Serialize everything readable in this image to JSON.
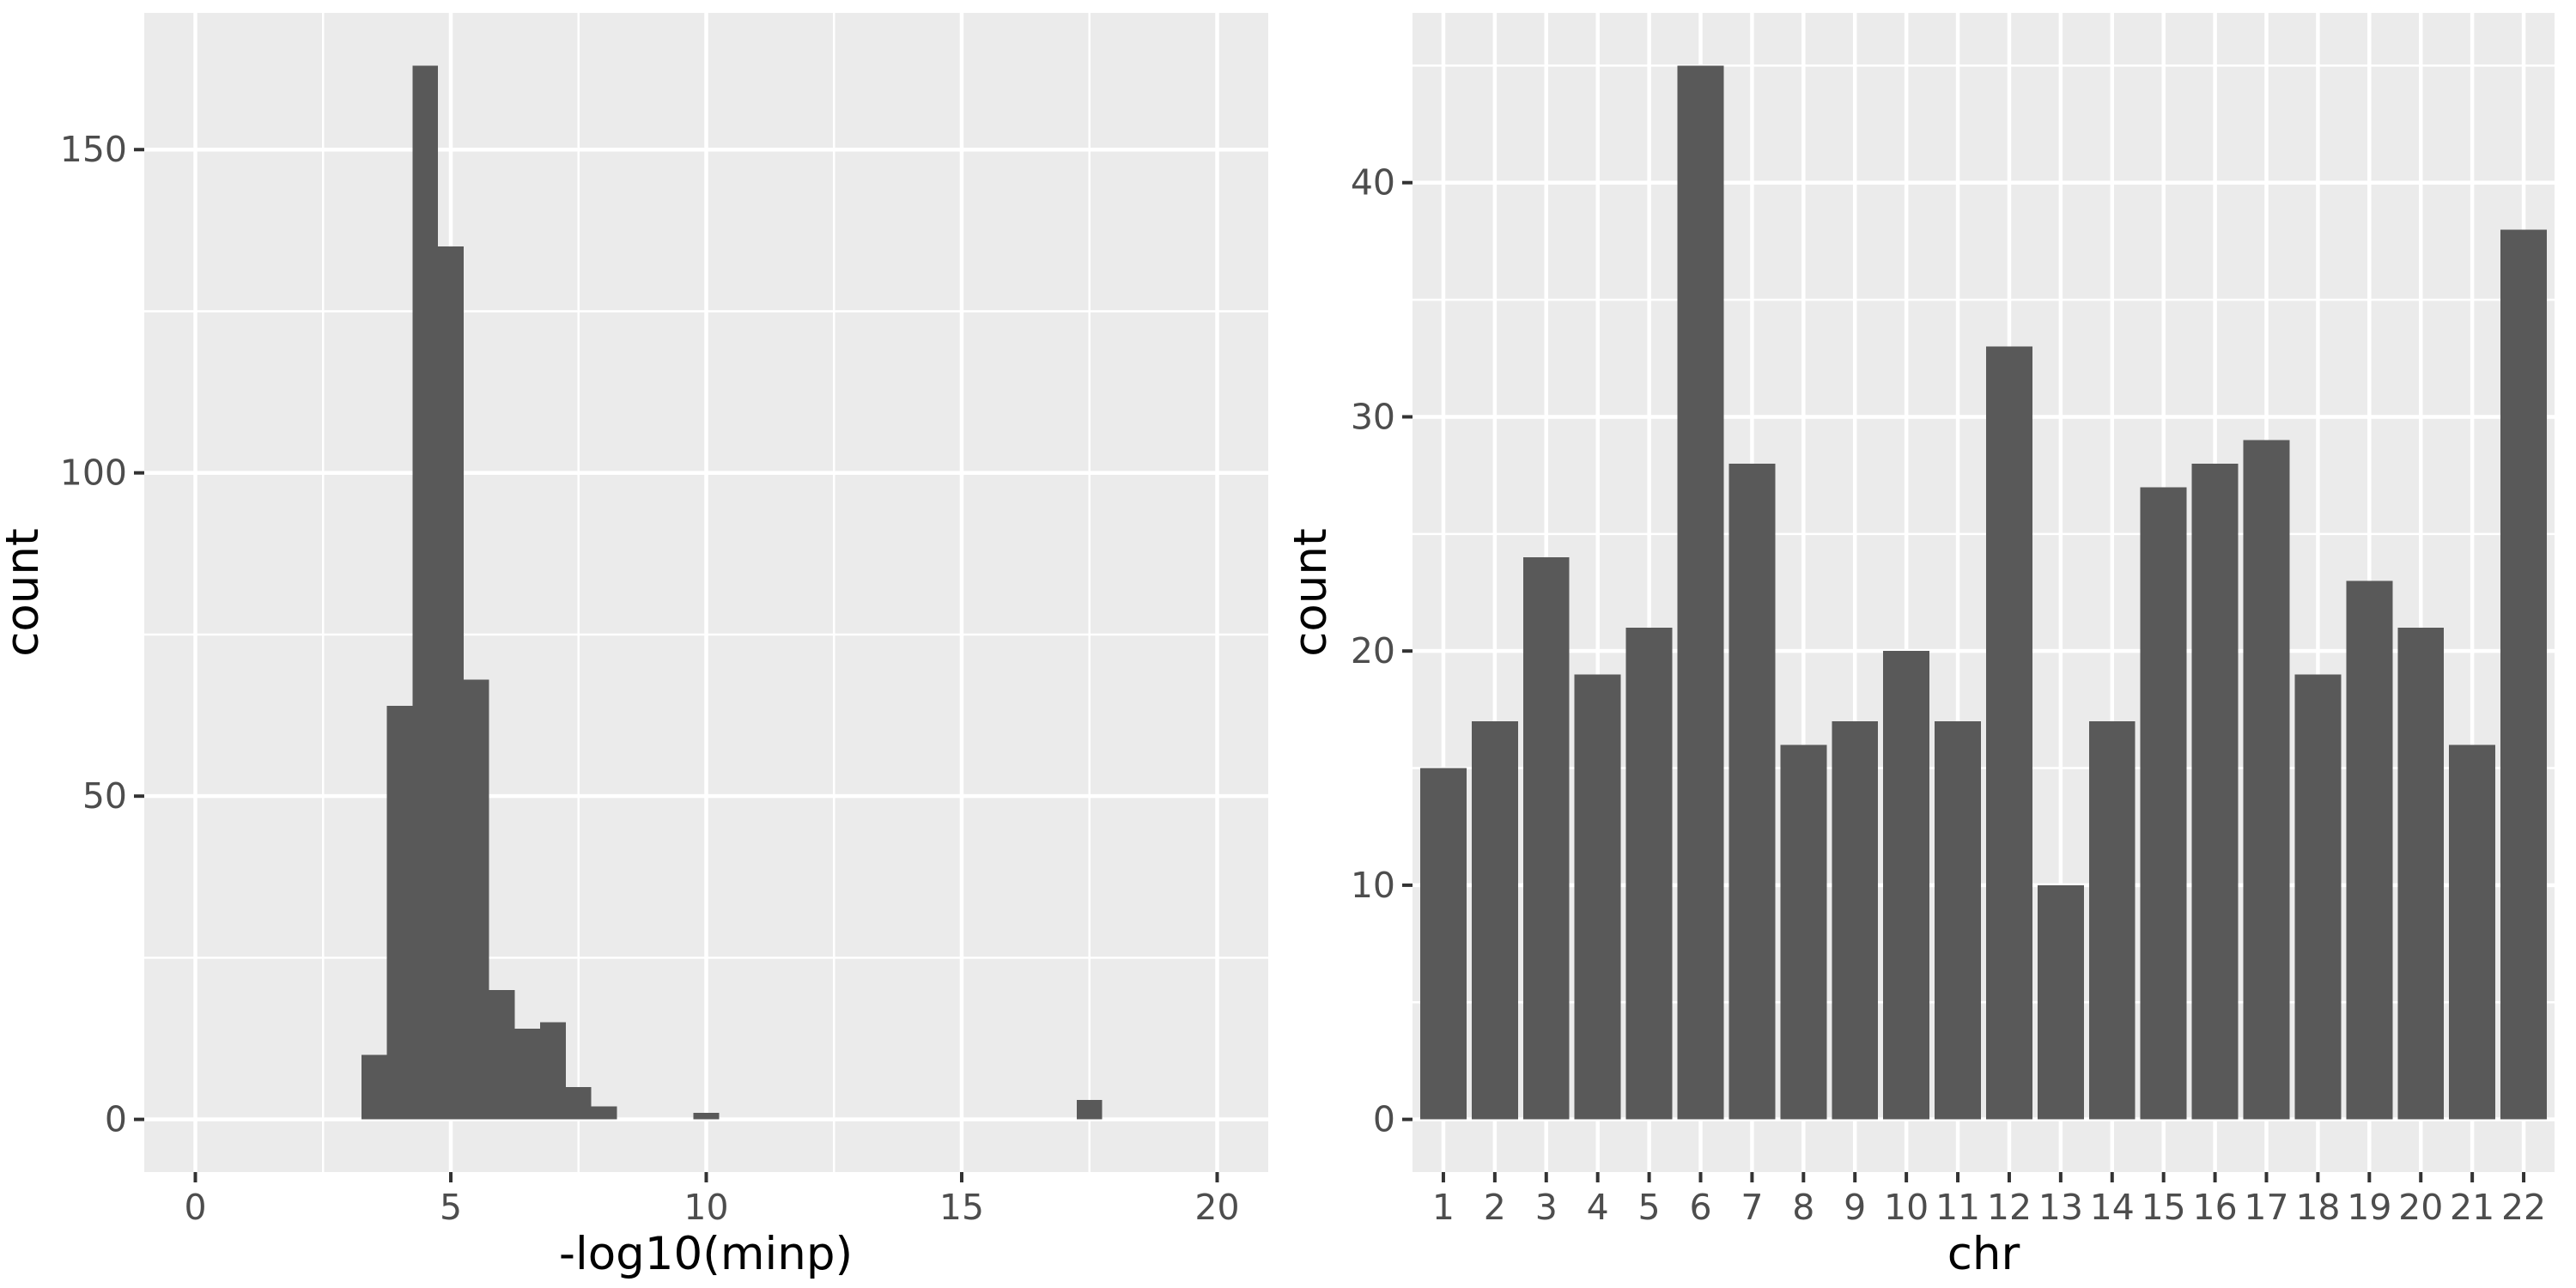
{
  "page": {
    "background": "#FFFFFF"
  },
  "style": {
    "bar_fill": "#595959",
    "panel_bg": "#EBEBEB",
    "grid_color": "#FFFFFF",
    "tick_label_color": "#4D4D4D",
    "axis_title_color": "#000000",
    "tick_mark_color": "#333333"
  },
  "chart_data": [
    {
      "type": "histogram",
      "title": "",
      "xlabel": "-log10(minp)",
      "ylabel": "count",
      "x_ticks": [
        0,
        5,
        10,
        15,
        20
      ],
      "x_minor_ticks": [
        2.5,
        7.5,
        12.5,
        17.5
      ],
      "y_ticks": [
        0,
        50,
        100,
        150
      ],
      "y_minor_ticks": [
        25,
        75,
        125
      ],
      "xlim": [
        -1.0,
        21.0
      ],
      "ylim": [
        -8.15,
        171.15
      ],
      "grid": true,
      "legend": false,
      "binwidth": 0.5,
      "bins": [
        {
          "x0": 3.25,
          "x1": 3.75,
          "count": 10
        },
        {
          "x0": 3.75,
          "x1": 4.25,
          "count": 64
        },
        {
          "x0": 4.25,
          "x1": 4.75,
          "count": 163
        },
        {
          "x0": 4.75,
          "x1": 5.25,
          "count": 135
        },
        {
          "x0": 5.25,
          "x1": 5.75,
          "count": 68
        },
        {
          "x0": 5.75,
          "x1": 6.25,
          "count": 20
        },
        {
          "x0": 6.25,
          "x1": 6.75,
          "count": 14
        },
        {
          "x0": 6.75,
          "x1": 7.25,
          "count": 15
        },
        {
          "x0": 7.25,
          "x1": 7.75,
          "count": 5
        },
        {
          "x0": 7.75,
          "x1": 8.25,
          "count": 2
        },
        {
          "x0": 9.75,
          "x1": 10.25,
          "count": 1
        },
        {
          "x0": 17.25,
          "x1": 17.75,
          "count": 3
        }
      ]
    },
    {
      "type": "bar",
      "title": "",
      "xlabel": "chr",
      "ylabel": "count",
      "categories": [
        "1",
        "2",
        "3",
        "4",
        "5",
        "6",
        "7",
        "8",
        "9",
        "10",
        "11",
        "12",
        "13",
        "14",
        "15",
        "16",
        "17",
        "18",
        "19",
        "20",
        "21",
        "22"
      ],
      "values": [
        15,
        17,
        24,
        19,
        21,
        45,
        28,
        16,
        17,
        20,
        17,
        33,
        10,
        17,
        27,
        28,
        29,
        19,
        23,
        21,
        16,
        38
      ],
      "y_ticks": [
        0,
        10,
        20,
        30,
        40
      ],
      "y_minor_ticks": [
        5,
        15,
        25,
        35,
        45
      ],
      "ylim": [
        -2.25,
        47.25
      ],
      "bar_rel_width": 0.9,
      "grid": true,
      "legend": false
    }
  ]
}
